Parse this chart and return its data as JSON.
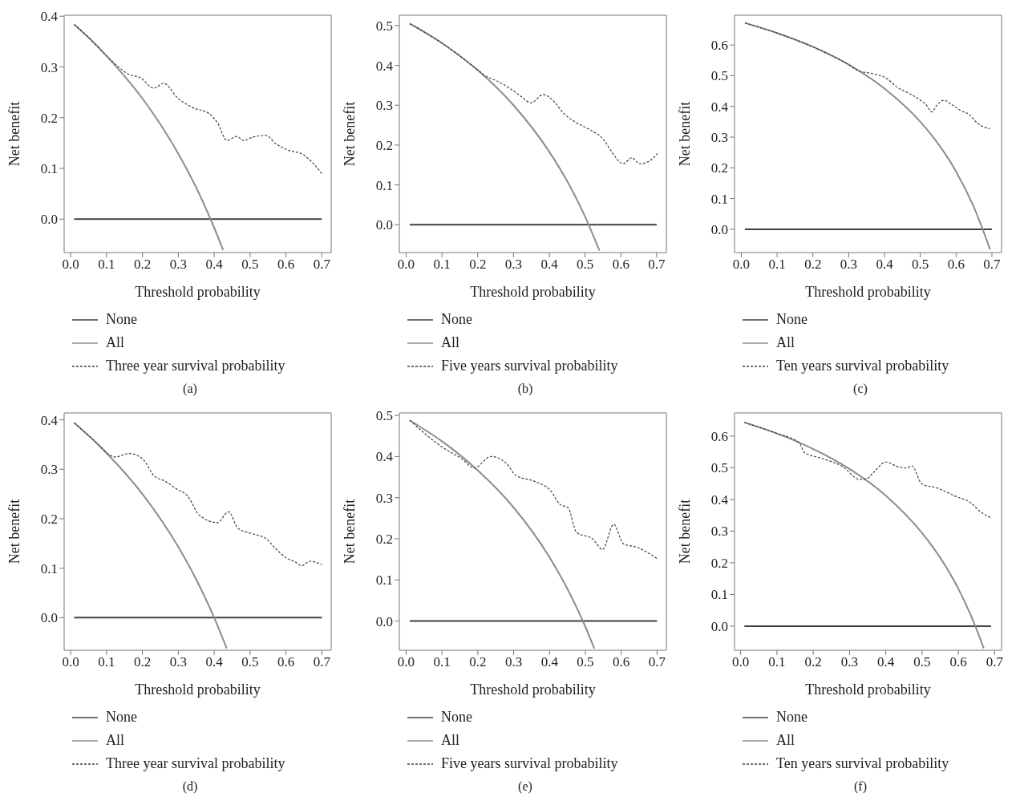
{
  "chart_data": [
    {
      "type": "line",
      "xlabel": "Threshold probability",
      "ylabel": "Net benefit",
      "annotations": [
        "(a)"
      ],
      "legend": "bottom",
      "marker": "none",
      "xlim": [
        -0.018,
        0.726
      ],
      "ylim": [
        -0.066,
        0.402
      ],
      "xticks": [
        {
          "value": 0,
          "label": "0.0"
        },
        {
          "value": 0.1,
          "label": "0.1"
        },
        {
          "value": 0.2,
          "label": "0.2"
        },
        {
          "value": 0.3,
          "label": "0.3"
        },
        {
          "value": 0.4,
          "label": "0.4"
        },
        {
          "value": 0.5,
          "label": "0.5"
        },
        {
          "value": 0.6,
          "label": "0.6"
        },
        {
          "value": 0.7,
          "label": "0.7"
        }
      ],
      "yticks": [
        {
          "value": 0,
          "label": "0.0"
        },
        {
          "value": 0.1,
          "label": "0.1"
        },
        {
          "value": 0.2,
          "label": "0.2"
        },
        {
          "value": 0.3,
          "label": "0.3"
        },
        {
          "value": 0.4,
          "label": "0.4"
        }
      ],
      "series": [
        {
          "name": "None",
          "color": "#404040",
          "line_style": "solid",
          "x": [
            0.01,
            0.7
          ],
          "values": [
            0,
            0
          ]
        },
        {
          "name": "All",
          "color": "#8c8c8c",
          "line_style": "solid",
          "x": [
            0.01,
            0.05,
            0.1,
            0.15,
            0.2,
            0.25,
            0.3,
            0.35,
            0.4,
            0.425
          ],
          "values": [
            0.384,
            0.358,
            0.322,
            0.282,
            0.238,
            0.187,
            0.129,
            0.062,
            -0.017,
            -0.061
          ]
        },
        {
          "name": "Three year survival probability",
          "color": "#404040",
          "line_style": "dashed",
          "x": [
            0.01,
            0.05,
            0.1,
            0.132,
            0.163,
            0.194,
            0.232,
            0.259,
            0.298,
            0.34,
            0.386,
            0.409,
            0.436,
            0.463,
            0.482,
            0.505,
            0.544,
            0.571,
            0.602,
            0.648,
            0.7
          ],
          "values": [
            0.384,
            0.358,
            0.322,
            0.301,
            0.285,
            0.279,
            0.258,
            0.268,
            0.239,
            0.22,
            0.208,
            0.19,
            0.155,
            0.163,
            0.155,
            0.161,
            0.165,
            0.149,
            0.137,
            0.127,
            0.09
          ]
        }
      ]
    },
    {
      "type": "line",
      "xlabel": "Threshold probability",
      "ylabel": "Net benefit",
      "annotations": [
        "(b)"
      ],
      "legend": "bottom",
      "marker": "none",
      "xlim": [
        -0.019,
        0.727
      ],
      "ylim": [
        -0.07,
        0.526
      ],
      "xticks": [
        {
          "value": 0,
          "label": "0.0"
        },
        {
          "value": 0.1,
          "label": "0.1"
        },
        {
          "value": 0.2,
          "label": "0.2"
        },
        {
          "value": 0.3,
          "label": "0.3"
        },
        {
          "value": 0.4,
          "label": "0.4"
        },
        {
          "value": 0.5,
          "label": "0.5"
        },
        {
          "value": 0.6,
          "label": "0.6"
        },
        {
          "value": 0.7,
          "label": "0.7"
        }
      ],
      "yticks": [
        {
          "value": 0,
          "label": "0.0"
        },
        {
          "value": 0.1,
          "label": "0.1"
        },
        {
          "value": 0.2,
          "label": "0.2"
        },
        {
          "value": 0.3,
          "label": "0.3"
        },
        {
          "value": 0.4,
          "label": "0.4"
        },
        {
          "value": 0.5,
          "label": "0.5"
        }
      ],
      "series": [
        {
          "name": "None",
          "color": "#404040",
          "line_style": "solid",
          "x": [
            0.01,
            0.7
          ],
          "values": [
            0,
            0
          ]
        },
        {
          "name": "All",
          "color": "#8c8c8c",
          "line_style": "solid",
          "x": [
            0.01,
            0.1,
            0.2,
            0.3,
            0.4,
            0.45,
            0.5,
            0.54
          ],
          "values": [
            0.505,
            0.456,
            0.388,
            0.3,
            0.183,
            0.109,
            0.02,
            -0.065
          ]
        },
        {
          "name": "Five years survival probability",
          "color": "#404040",
          "line_style": "dashed",
          "x": [
            0.01,
            0.1,
            0.194,
            0.225,
            0.256,
            0.287,
            0.318,
            0.349,
            0.383,
            0.41,
            0.441,
            0.472,
            0.51,
            0.553,
            0.572,
            0.607,
            0.63,
            0.653,
            0.68,
            0.702
          ],
          "values": [
            0.505,
            0.456,
            0.393,
            0.372,
            0.36,
            0.344,
            0.324,
            0.306,
            0.327,
            0.312,
            0.279,
            0.258,
            0.24,
            0.212,
            0.186,
            0.153,
            0.168,
            0.153,
            0.16,
            0.179
          ]
        }
      ]
    },
    {
      "type": "line",
      "xlabel": "Threshold probability",
      "ylabel": "Net benefit",
      "annotations": [
        "(c)"
      ],
      "legend": "bottom",
      "marker": "none",
      "xlim": [
        -0.019,
        0.727
      ],
      "ylim": [
        -0.076,
        0.697
      ],
      "xticks": [
        {
          "value": 0,
          "label": "0.0"
        },
        {
          "value": 0.1,
          "label": "0.1"
        },
        {
          "value": 0.2,
          "label": "0.2"
        },
        {
          "value": 0.3,
          "label": "0.3"
        },
        {
          "value": 0.4,
          "label": "0.4"
        },
        {
          "value": 0.5,
          "label": "0.5"
        },
        {
          "value": 0.6,
          "label": "0.6"
        },
        {
          "value": 0.7,
          "label": "0.7"
        }
      ],
      "yticks": [
        {
          "value": 0,
          "label": "0.0"
        },
        {
          "value": 0.1,
          "label": "0.1"
        },
        {
          "value": 0.2,
          "label": "0.2"
        },
        {
          "value": 0.3,
          "label": "0.3"
        },
        {
          "value": 0.4,
          "label": "0.4"
        },
        {
          "value": 0.5,
          "label": "0.5"
        },
        {
          "value": 0.6,
          "label": "0.6"
        }
      ],
      "series": [
        {
          "name": "None",
          "color": "#404040",
          "line_style": "solid",
          "x": [
            0.01,
            0.7
          ],
          "values": [
            0,
            0
          ]
        },
        {
          "name": "All",
          "color": "#8c8c8c",
          "line_style": "solid",
          "x": [
            0.01,
            0.1,
            0.2,
            0.3,
            0.4,
            0.5,
            0.55,
            0.6,
            0.65,
            0.695
          ],
          "values": [
            0.672,
            0.639,
            0.594,
            0.536,
            0.458,
            0.35,
            0.278,
            0.188,
            0.071,
            -0.066
          ]
        },
        {
          "name": "Ten years survival probability",
          "color": "#404040",
          "line_style": "dashed",
          "x": [
            0.01,
            0.1,
            0.2,
            0.3,
            0.328,
            0.366,
            0.405,
            0.436,
            0.466,
            0.497,
            0.516,
            0.532,
            0.547,
            0.566,
            0.589,
            0.612,
            0.636,
            0.659,
            0.694
          ],
          "values": [
            0.672,
            0.639,
            0.594,
            0.536,
            0.516,
            0.507,
            0.492,
            0.462,
            0.444,
            0.423,
            0.406,
            0.382,
            0.405,
            0.42,
            0.405,
            0.387,
            0.374,
            0.346,
            0.327
          ]
        }
      ]
    },
    {
      "type": "line",
      "xlabel": "Threshold probability",
      "ylabel": "Net benefit",
      "annotations": [
        "(d)"
      ],
      "legend": "bottom",
      "marker": "none",
      "xlim": [
        -0.018,
        0.726
      ],
      "ylim": [
        -0.066,
        0.414
      ],
      "xticks": [
        {
          "value": 0,
          "label": "0.0"
        },
        {
          "value": 0.1,
          "label": "0.1"
        },
        {
          "value": 0.2,
          "label": "0.2"
        },
        {
          "value": 0.3,
          "label": "0.3"
        },
        {
          "value": 0.4,
          "label": "0.4"
        },
        {
          "value": 0.5,
          "label": "0.5"
        },
        {
          "value": 0.6,
          "label": "0.6"
        },
        {
          "value": 0.7,
          "label": "0.7"
        }
      ],
      "yticks": [
        {
          "value": 0,
          "label": "0.0"
        },
        {
          "value": 0.1,
          "label": "0.1"
        },
        {
          "value": 0.2,
          "label": "0.2"
        },
        {
          "value": 0.3,
          "label": "0.3"
        },
        {
          "value": 0.4,
          "label": "0.4"
        }
      ],
      "series": [
        {
          "name": "None",
          "color": "#404040",
          "line_style": "solid",
          "x": [
            0.01,
            0.7
          ],
          "values": [
            0,
            0
          ]
        },
        {
          "name": "All",
          "color": "#8c8c8c",
          "line_style": "solid",
          "x": [
            0.01,
            0.1,
            0.2,
            0.3,
            0.35,
            0.4,
            0.435
          ],
          "values": [
            0.394,
            0.333,
            0.25,
            0.143,
            0.077,
            0,
            -0.062
          ]
        },
        {
          "name": "Three year survival probability",
          "color": "#404040",
          "line_style": "dashed",
          "x": [
            0.01,
            0.06,
            0.125,
            0.163,
            0.202,
            0.232,
            0.263,
            0.298,
            0.325,
            0.359,
            0.409,
            0.44,
            0.467,
            0.505,
            0.544,
            0.571,
            0.602,
            0.625,
            0.644,
            0.667,
            0.7
          ],
          "values": [
            0.394,
            0.362,
            0.325,
            0.332,
            0.32,
            0.287,
            0.276,
            0.259,
            0.247,
            0.207,
            0.192,
            0.214,
            0.18,
            0.17,
            0.16,
            0.14,
            0.12,
            0.113,
            0.105,
            0.114,
            0.107
          ]
        }
      ]
    },
    {
      "type": "line",
      "xlabel": "Threshold probability",
      "ylabel": "Net benefit",
      "annotations": [
        "(e)"
      ],
      "legend": "bottom",
      "marker": "none",
      "xlim": [
        -0.019,
        0.726
      ],
      "ylim": [
        -0.071,
        0.506
      ],
      "xticks": [
        {
          "value": 0,
          "label": "0.0"
        },
        {
          "value": 0.1,
          "label": "0.1"
        },
        {
          "value": 0.2,
          "label": "0.2"
        },
        {
          "value": 0.3,
          "label": "0.3"
        },
        {
          "value": 0.4,
          "label": "0.4"
        },
        {
          "value": 0.5,
          "label": "0.5"
        },
        {
          "value": 0.6,
          "label": "0.6"
        },
        {
          "value": 0.7,
          "label": "0.7"
        }
      ],
      "yticks": [
        {
          "value": 0,
          "label": "0.0"
        },
        {
          "value": 0.1,
          "label": "0.1"
        },
        {
          "value": 0.2,
          "label": "0.2"
        },
        {
          "value": 0.3,
          "label": "0.3"
        },
        {
          "value": 0.4,
          "label": "0.4"
        },
        {
          "value": 0.5,
          "label": "0.5"
        }
      ],
      "series": [
        {
          "name": "None",
          "color": "#404040",
          "line_style": "solid",
          "x": [
            0.01,
            0.7
          ],
          "values": [
            0,
            0
          ]
        },
        {
          "name": "All",
          "color": "#8c8c8c",
          "line_style": "solid",
          "x": [
            0.01,
            0.1,
            0.2,
            0.3,
            0.4,
            0.45,
            0.5,
            0.525
          ],
          "values": [
            0.488,
            0.437,
            0.366,
            0.276,
            0.155,
            0.078,
            -0.014,
            -0.067
          ]
        },
        {
          "name": "Five years survival probability",
          "color": "#404040",
          "line_style": "dashed",
          "x": [
            0.01,
            0.102,
            0.156,
            0.19,
            0.236,
            0.279,
            0.306,
            0.36,
            0.402,
            0.429,
            0.452,
            0.475,
            0.521,
            0.548,
            0.579,
            0.606,
            0.648,
            0.7
          ],
          "values": [
            0.488,
            0.422,
            0.394,
            0.372,
            0.4,
            0.384,
            0.354,
            0.339,
            0.318,
            0.284,
            0.275,
            0.216,
            0.199,
            0.174,
            0.235,
            0.188,
            0.178,
            0.152
          ]
        }
      ]
    },
    {
      "type": "line",
      "xlabel": "Threshold probability",
      "ylabel": "Net benefit",
      "annotations": [
        "(f)"
      ],
      "legend": "bottom",
      "marker": "none",
      "xlim": [
        -0.017,
        0.719
      ],
      "ylim": [
        -0.076,
        0.673
      ],
      "xticks": [
        {
          "value": 0,
          "label": "0.0"
        },
        {
          "value": 0.1,
          "label": "0.1"
        },
        {
          "value": 0.2,
          "label": "0.2"
        },
        {
          "value": 0.3,
          "label": "0.3"
        },
        {
          "value": 0.4,
          "label": "0.4"
        },
        {
          "value": 0.5,
          "label": "0.5"
        },
        {
          "value": 0.6,
          "label": "0.6"
        },
        {
          "value": 0.7,
          "label": "0.7"
        }
      ],
      "yticks": [
        {
          "value": 0,
          "label": "0.0"
        },
        {
          "value": 0.1,
          "label": "0.1"
        },
        {
          "value": 0.2,
          "label": "0.2"
        },
        {
          "value": 0.3,
          "label": "0.3"
        },
        {
          "value": 0.4,
          "label": "0.4"
        },
        {
          "value": 0.5,
          "label": "0.5"
        },
        {
          "value": 0.6,
          "label": "0.6"
        }
      ],
      "series": [
        {
          "name": "None",
          "color": "#404040",
          "line_style": "solid",
          "x": [
            0.01,
            0.69
          ],
          "values": [
            0,
            0
          ]
        },
        {
          "name": "All",
          "color": "#8c8c8c",
          "line_style": "solid",
          "x": [
            0.01,
            0.1,
            0.2,
            0.3,
            0.4,
            0.5,
            0.55,
            0.6,
            0.65,
            0.67
          ],
          "values": [
            0.643,
            0.608,
            0.559,
            0.496,
            0.412,
            0.294,
            0.216,
            0.118,
            -0.009,
            -0.07
          ]
        },
        {
          "name": "Ten years survival probability",
          "color": "#404040",
          "line_style": "dashed",
          "x": [
            0.01,
            0.1,
            0.161,
            0.176,
            0.222,
            0.282,
            0.328,
            0.347,
            0.366,
            0.4,
            0.434,
            0.457,
            0.472,
            0.499,
            0.541,
            0.594,
            0.632,
            0.662,
            0.69
          ],
          "values": [
            0.643,
            0.608,
            0.579,
            0.548,
            0.53,
            0.503,
            0.463,
            0.465,
            0.485,
            0.518,
            0.503,
            0.499,
            0.506,
            0.449,
            0.436,
            0.409,
            0.391,
            0.36,
            0.342
          ]
        }
      ]
    }
  ]
}
